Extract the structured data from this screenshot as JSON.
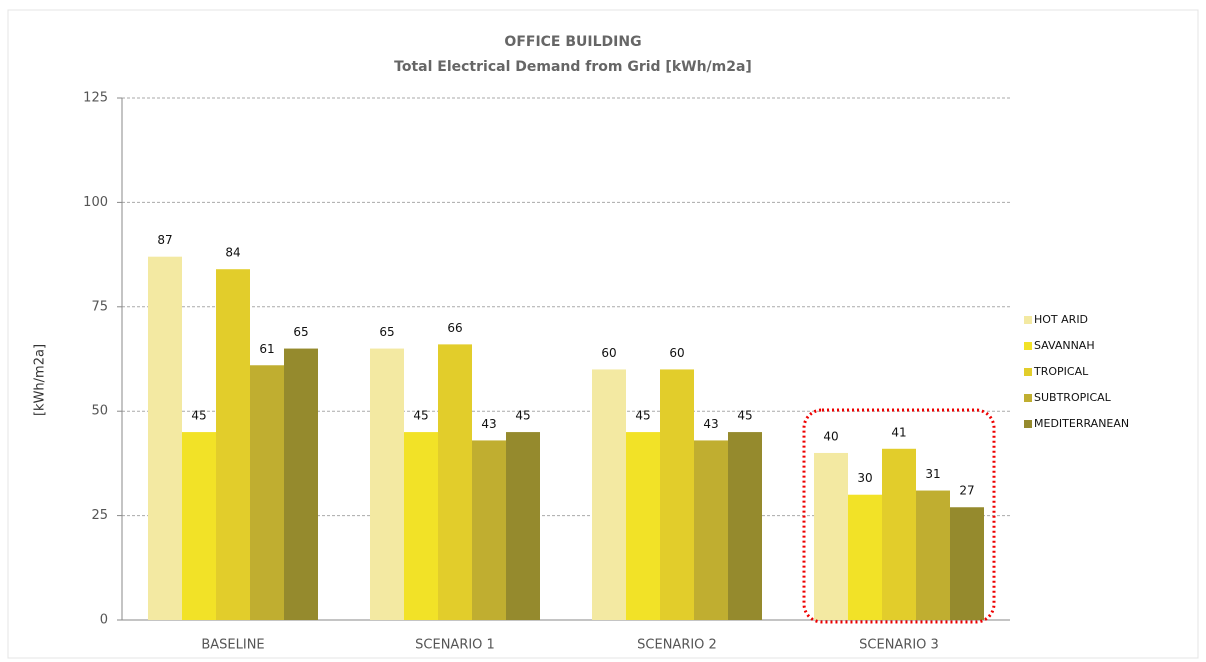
{
  "chart_data": {
    "type": "bar",
    "title": "OFFICE BUILDING",
    "subtitle": "Total Electrical Demand from Grid [kWh/m2a]",
    "y_label": "[kWh/m2a]",
    "categories": [
      "BASELINE",
      "SCENARIO 1",
      "SCENARIO 2",
      "SCENARIO 3"
    ],
    "series": [
      {
        "name": "HOT ARID",
        "color": "#f3e9a2",
        "values": [
          87,
          65,
          60,
          40
        ]
      },
      {
        "name": "SAVANNAH",
        "color": "#f2e227",
        "values": [
          45,
          45,
          45,
          30
        ]
      },
      {
        "name": "TROPICAL",
        "color": "#e2cd2b",
        "values": [
          84,
          66,
          60,
          41
        ]
      },
      {
        "name": "SUBTROPICAL",
        "color": "#c0ae30",
        "values": [
          61,
          43,
          43,
          31
        ]
      },
      {
        "name": "MEDITERRANEAN",
        "color": "#958a2d",
        "values": [
          65,
          45,
          45,
          27
        ]
      }
    ],
    "ylim": [
      0,
      125
    ],
    "yticks": [
      0,
      25,
      50,
      75,
      100,
      125
    ],
    "grid": true,
    "legend": "right"
  }
}
